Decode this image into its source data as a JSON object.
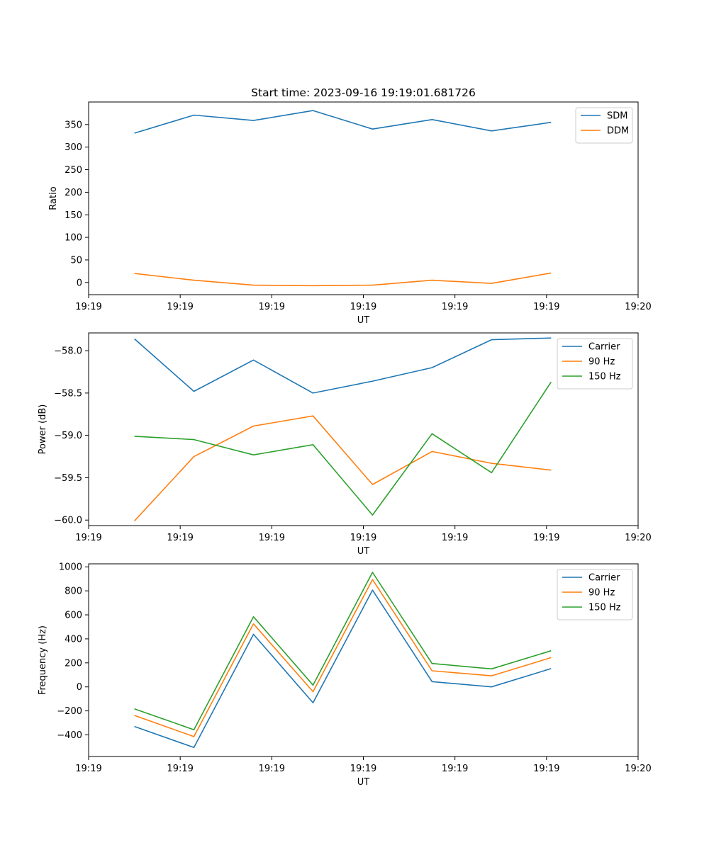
{
  "chart_data": [
    {
      "type": "line",
      "title": "Start time: 2023-09-16 19:19:01.681726",
      "xlabel": "UT",
      "ylabel": "Ratio",
      "xlim": [
        0,
        6
      ],
      "ylim": [
        -27,
        400
      ],
      "x": [
        0.5,
        1.15,
        1.8,
        2.45,
        3.1,
        3.75,
        4.4,
        5.05
      ],
      "x_ticks": [
        0.0,
        1.0,
        2.0,
        3.0,
        4.0,
        5.0,
        6.0
      ],
      "x_tick_labels": [
        "19:19",
        "19:19",
        "19:19",
        "19:19",
        "19:19",
        "19:19",
        "19:20"
      ],
      "y_ticks": [
        0,
        50,
        100,
        150,
        200,
        250,
        300,
        350
      ],
      "y_tick_labels": [
        "0",
        "50",
        "100",
        "150",
        "200",
        "250",
        "300",
        "350"
      ],
      "legend_position": "top-right",
      "series": [
        {
          "name": "SDM",
          "color": "#1f77b4",
          "values": [
            331,
            371,
            359,
            381,
            340,
            361,
            336,
            355
          ]
        },
        {
          "name": "DDM",
          "color": "#ff7f0e",
          "values": [
            20,
            5,
            -6,
            -7,
            -6,
            5,
            -2,
            21
          ]
        }
      ]
    },
    {
      "type": "line",
      "title": "",
      "xlabel": "UT",
      "ylabel": "Power (dB)",
      "xlim": [
        0,
        6
      ],
      "ylim": [
        -60.065,
        -57.79
      ],
      "x": [
        0.5,
        1.15,
        1.8,
        2.45,
        3.1,
        3.75,
        4.4,
        5.05
      ],
      "x_ticks": [
        0.0,
        1.0,
        2.0,
        3.0,
        4.0,
        5.0,
        6.0
      ],
      "x_tick_labels": [
        "19:19",
        "19:19",
        "19:19",
        "19:19",
        "19:19",
        "19:19",
        "19:20"
      ],
      "y_ticks": [
        -58.0,
        -58.5,
        -59.0,
        -59.5,
        -60.0
      ],
      "y_tick_labels": [
        "−58.0",
        "−58.5",
        "−59.0",
        "−59.5",
        "−60.0"
      ],
      "legend_position": "top-right",
      "series": [
        {
          "name": "Carrier",
          "color": "#1f77b4",
          "values": [
            -57.86,
            -58.48,
            -58.11,
            -58.5,
            -58.36,
            -58.2,
            -57.87,
            -57.85
          ]
        },
        {
          "name": "90 Hz",
          "color": "#ff7f0e",
          "values": [
            -60.01,
            -59.25,
            -58.89,
            -58.77,
            -59.58,
            -59.19,
            -59.33,
            -59.41
          ]
        },
        {
          "name": "150 Hz",
          "color": "#2ca02c",
          "values": [
            -59.01,
            -59.05,
            -59.23,
            -59.11,
            -59.94,
            -58.98,
            -59.44,
            -58.37
          ]
        }
      ]
    },
    {
      "type": "line",
      "title": "",
      "xlabel": "UT",
      "ylabel": "Frequency (Hz)",
      "xlim": [
        0,
        6
      ],
      "ylim": [
        -580,
        1025
      ],
      "x": [
        0.5,
        1.15,
        1.8,
        2.45,
        3.1,
        3.75,
        4.4,
        5.05
      ],
      "x_ticks": [
        0.0,
        1.0,
        2.0,
        3.0,
        4.0,
        5.0,
        6.0
      ],
      "x_tick_labels": [
        "19:19",
        "19:19",
        "19:19",
        "19:19",
        "19:19",
        "19:19",
        "19:20"
      ],
      "y_ticks": [
        1000,
        800,
        600,
        400,
        200,
        0,
        -200,
        -400
      ],
      "y_tick_labels": [
        "1000",
        "800",
        "600",
        "400",
        "200",
        "0",
        "−200",
        "−400"
      ],
      "legend_position": "top-right",
      "series": [
        {
          "name": "Carrier",
          "color": "#1f77b4",
          "values": [
            -330,
            -505,
            438,
            -132,
            806,
            44,
            0,
            152
          ]
        },
        {
          "name": "90 Hz",
          "color": "#ff7f0e",
          "values": [
            -238,
            -414,
            525,
            -40,
            894,
            134,
            92,
            244
          ]
        },
        {
          "name": "150 Hz",
          "color": "#2ca02c",
          "values": [
            -183,
            -357,
            584,
            15,
            954,
            195,
            150,
            301
          ]
        }
      ]
    }
  ]
}
